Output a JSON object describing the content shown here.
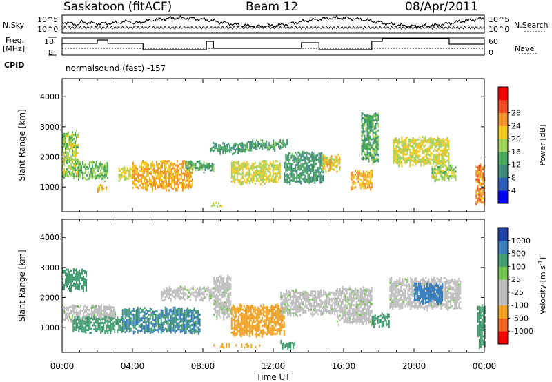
{
  "header": {
    "station": "Saskatoon (fitACF)",
    "beam": "Beam 12",
    "date": "08/Apr/2011"
  },
  "strip_panels": {
    "nsky_label": "N.Sky",
    "nsky_ticks": [
      "10^5",
      "10^0"
    ],
    "nsearch_label": "N.Search",
    "nsearch_ticks": [
      "10^5",
      "10^0"
    ],
    "freq_label_line1": "Freq.",
    "freq_label_line2": "[MHz]",
    "freq_ticks": [
      "18",
      "8"
    ],
    "nave_label": "Nave",
    "nave_ticks": [
      "60",
      "0"
    ],
    "cpid_label": "CPID",
    "cpid_text": "normalsound (fast) -157"
  },
  "chart_data": [
    {
      "type": "heatmap",
      "name": "power-panel",
      "ylabel": "Slant Range [km]",
      "yticks": [
        1000,
        2000,
        3000,
        4000
      ],
      "ylim": [
        180,
        4600
      ],
      "xlim_hours": [
        0,
        24
      ],
      "colorbar_label": "Power [dB]",
      "colorbar_ticks": [
        "4",
        "8",
        "12",
        "16",
        "20",
        "24",
        "28"
      ],
      "colorbar_colors": [
        "#0000ff",
        "#2f5fb8",
        "#3d8a7a",
        "#46a659",
        "#9ed05c",
        "#f2c81e",
        "#f0922c",
        "#ee4a22",
        "#ff0000"
      ],
      "patches": [
        {
          "t": [
            0.0,
            0.9
          ],
          "r": [
            1300,
            2900
          ],
          "level": 18
        },
        {
          "t": [
            0.9,
            2.6
          ],
          "r": [
            1200,
            1900
          ],
          "level": 16
        },
        {
          "t": [
            2.0,
            2.5
          ],
          "r": [
            800,
            1100
          ],
          "level": 22
        },
        {
          "t": [
            3.2,
            4.0
          ],
          "r": [
            1200,
            1700
          ],
          "level": 20
        },
        {
          "t": [
            4.0,
            7.4
          ],
          "r": [
            900,
            1900
          ],
          "level": 24
        },
        {
          "t": [
            7.0,
            8.6
          ],
          "r": [
            1500,
            1900
          ],
          "level": 14
        },
        {
          "t": [
            8.4,
            10.4
          ],
          "r": [
            2100,
            2500
          ],
          "level": 12
        },
        {
          "t": [
            8.4,
            9.8
          ],
          "r": [
            350,
            520
          ],
          "level": 18
        },
        {
          "t": [
            9.6,
            12.4
          ],
          "r": [
            1100,
            1900
          ],
          "level": 20
        },
        {
          "t": [
            10.4,
            12.8
          ],
          "r": [
            2200,
            2600
          ],
          "level": 13
        },
        {
          "t": [
            12.6,
            14.8
          ],
          "r": [
            1100,
            2200
          ],
          "level": 12
        },
        {
          "t": [
            14.8,
            15.8
          ],
          "r": [
            1500,
            2100
          ],
          "level": 22
        },
        {
          "t": [
            16.4,
            17.6
          ],
          "r": [
            900,
            1600
          ],
          "level": 24
        },
        {
          "t": [
            17.0,
            18.0
          ],
          "r": [
            1800,
            3500
          ],
          "level": 14
        },
        {
          "t": [
            18.8,
            22.0
          ],
          "r": [
            1700,
            2700
          ],
          "level": 20
        },
        {
          "t": [
            21.0,
            22.4
          ],
          "r": [
            1200,
            1800
          ],
          "level": 18
        },
        {
          "t": [
            23.5,
            24.0
          ],
          "r": [
            400,
            1800
          ],
          "level": 26
        }
      ]
    },
    {
      "type": "heatmap",
      "name": "velocity-panel",
      "ylabel": "Slant Range [km]",
      "yticks": [
        1000,
        2000,
        3000,
        4000
      ],
      "ylim": [
        180,
        4600
      ],
      "xlim_hours": [
        0,
        24
      ],
      "xticks": [
        "00:00",
        "04:00",
        "08:00",
        "12:00",
        "16:00",
        "20:00",
        "00:00"
      ],
      "xlabel": "Time UT",
      "colorbar_label": "Velocity [m s",
      "colorbar_unit_exp": "-1",
      "colorbar_label_end": "]",
      "colorbar_ticks": [
        "1000",
        "500",
        "100",
        "25",
        "-25",
        "-100",
        "-500",
        "-1000"
      ],
      "colorbar_colors": [
        "#2143a8",
        "#3a7fbd",
        "#3f9a6e",
        "#70c24a",
        "#bdbdbd",
        "#bdbdbd",
        "#f0a020",
        "#ee6020",
        "#ff0000"
      ],
      "patches": [
        {
          "t": [
            0.0,
            1.4
          ],
          "r": [
            2200,
            3000
          ],
          "level": 100
        },
        {
          "t": [
            0.0,
            3.0
          ],
          "r": [
            1200,
            1800
          ],
          "level": 0
        },
        {
          "t": [
            0.6,
            3.4
          ],
          "r": [
            800,
            1400
          ],
          "level": 100
        },
        {
          "t": [
            3.4,
            7.8
          ],
          "r": [
            800,
            1700
          ],
          "level": 300
        },
        {
          "t": [
            5.6,
            8.6
          ],
          "r": [
            1900,
            2400
          ],
          "level": 0
        },
        {
          "t": [
            8.6,
            9.6
          ],
          "r": [
            1300,
            2800
          ],
          "level": 0
        },
        {
          "t": [
            8.6,
            11.2
          ],
          "r": [
            350,
            500
          ],
          "level": -100
        },
        {
          "t": [
            9.6,
            12.6
          ],
          "r": [
            700,
            1800
          ],
          "level": -200
        },
        {
          "t": [
            12.4,
            13.2
          ],
          "r": [
            300,
            600
          ],
          "level": 100
        },
        {
          "t": [
            12.4,
            15.6
          ],
          "r": [
            1400,
            2300
          ],
          "level": 0
        },
        {
          "t": [
            15.6,
            17.6
          ],
          "r": [
            1100,
            2400
          ],
          "level": 0
        },
        {
          "t": [
            17.6,
            18.6
          ],
          "r": [
            1000,
            1500
          ],
          "level": 100
        },
        {
          "t": [
            18.6,
            22.6
          ],
          "r": [
            1600,
            2700
          ],
          "level": 0
        },
        {
          "t": [
            20.0,
            21.6
          ],
          "r": [
            1800,
            2500
          ],
          "level": 700
        },
        {
          "t": [
            23.6,
            24.0
          ],
          "r": [
            300,
            1800
          ],
          "level": 100
        }
      ]
    }
  ]
}
